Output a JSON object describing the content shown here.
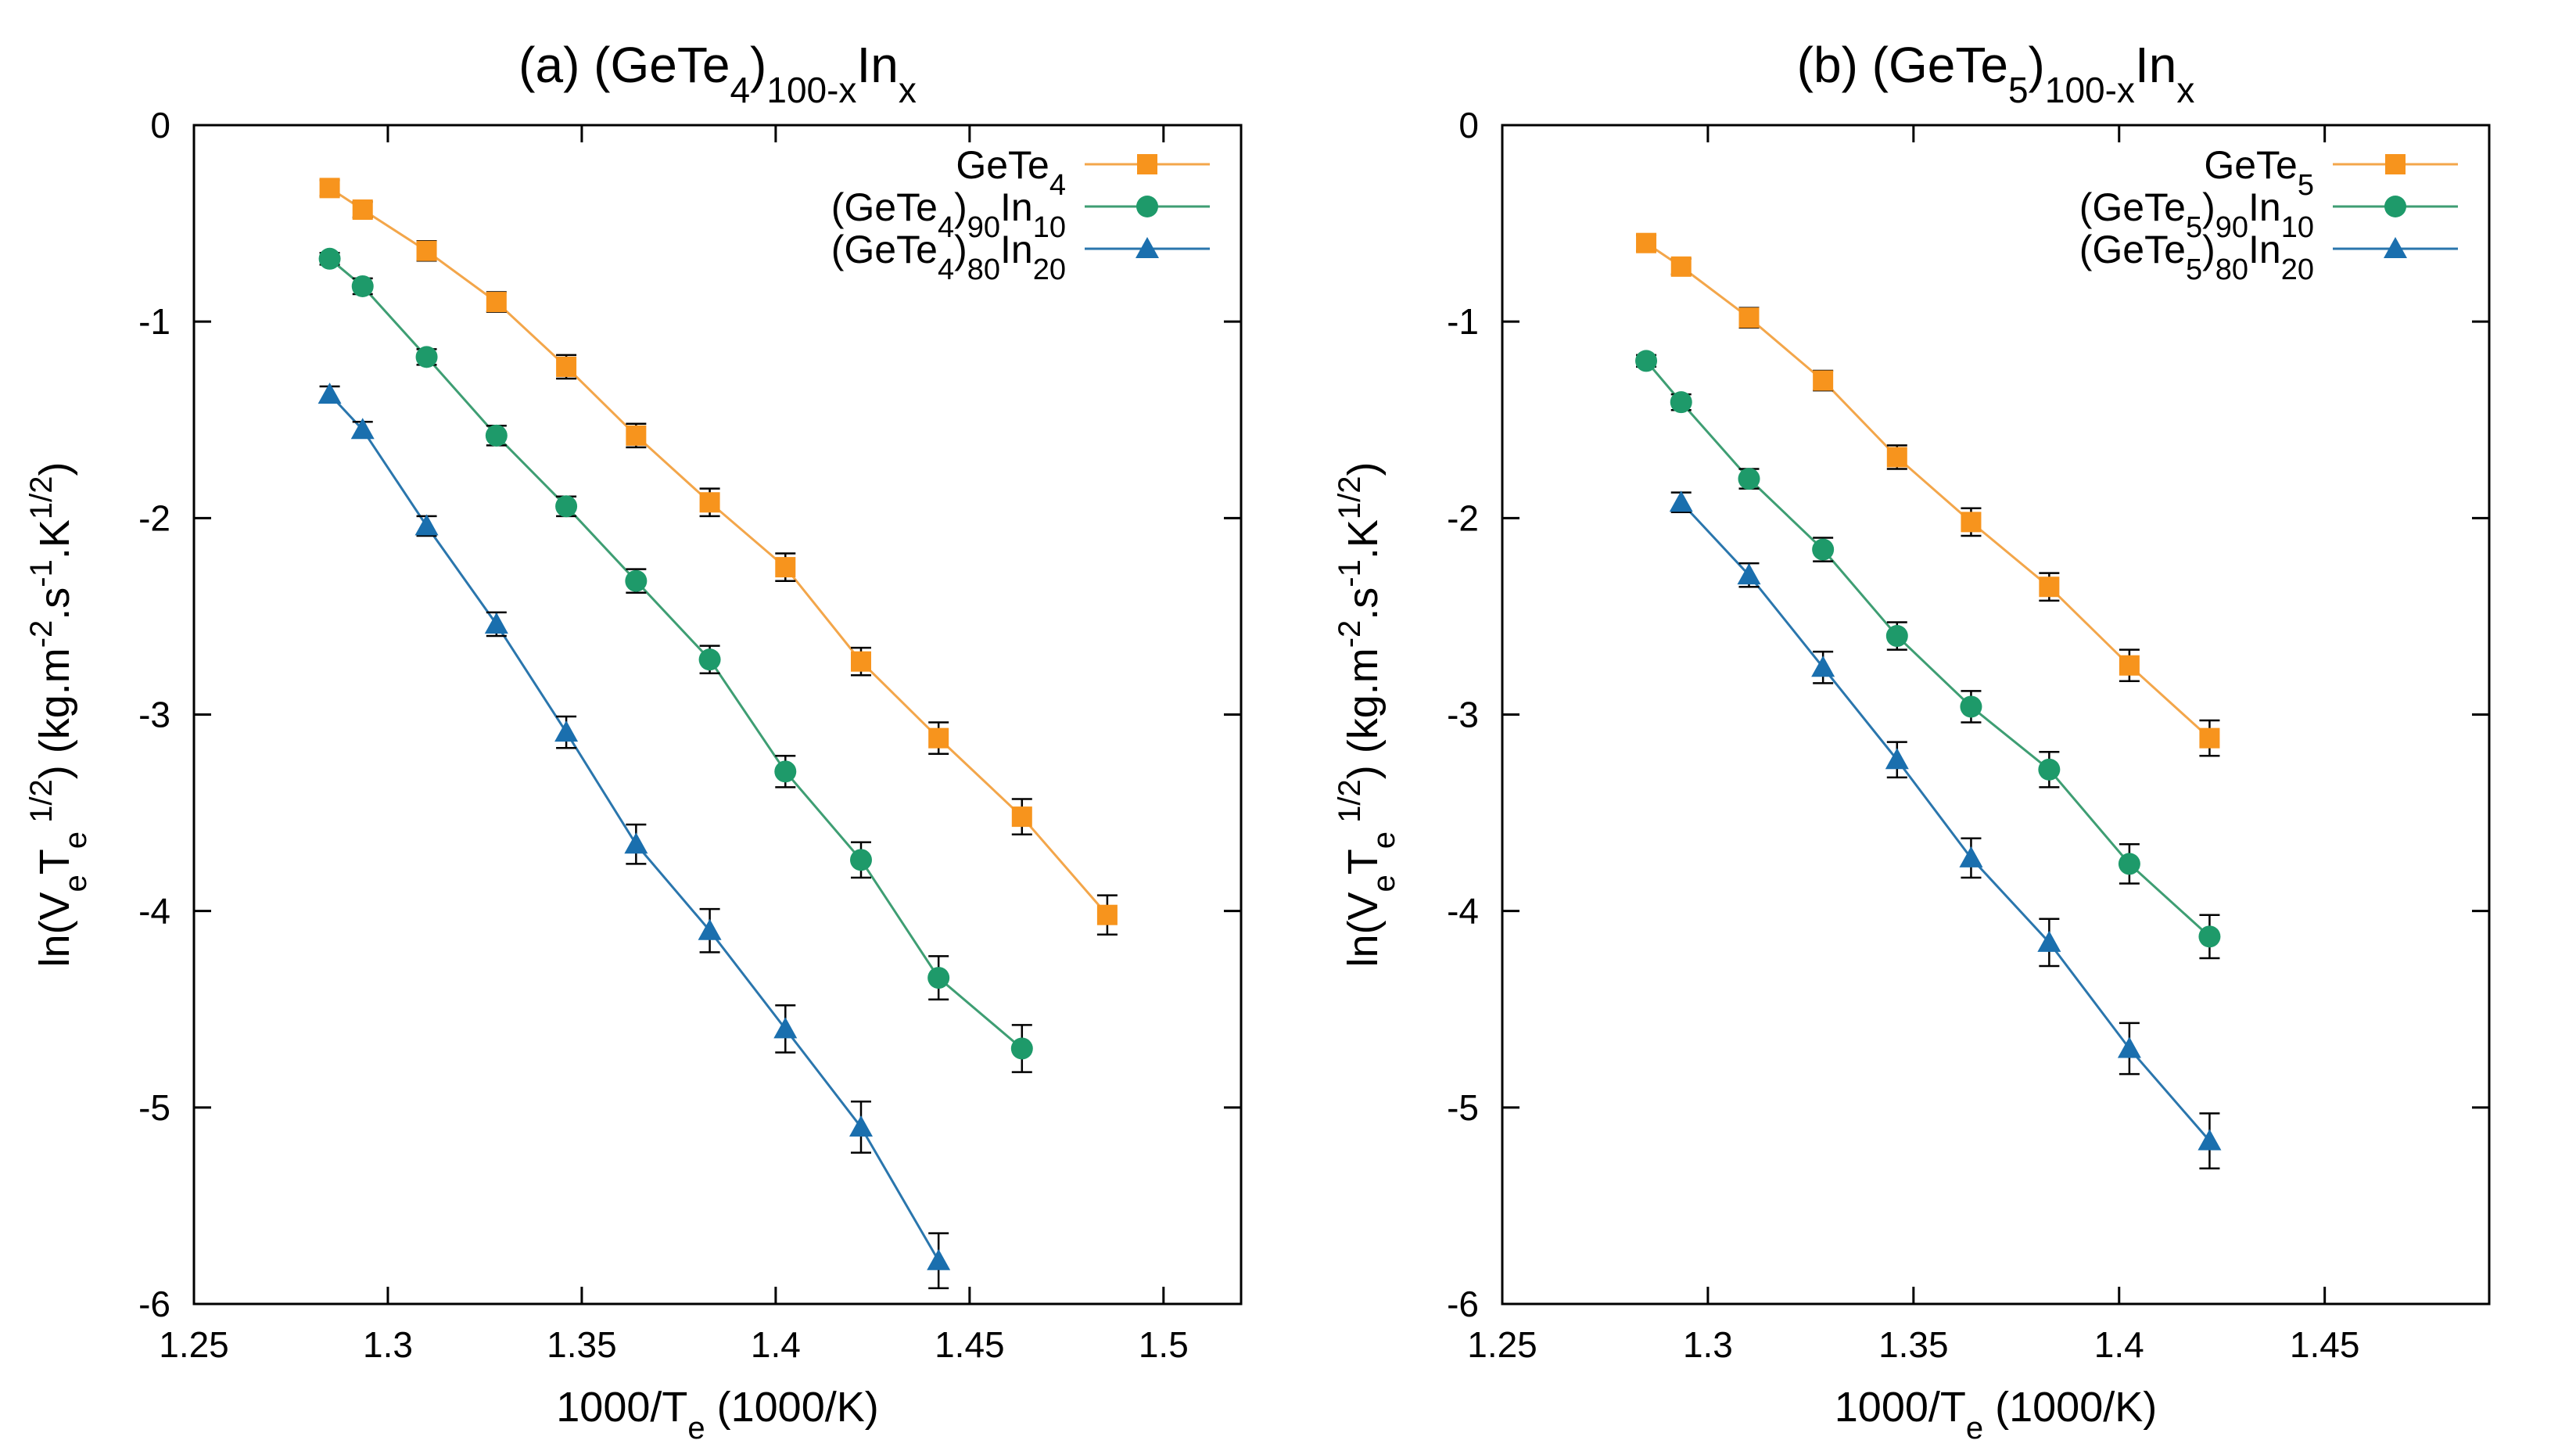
{
  "chart_data": [
    {
      "type": "line",
      "panel": "a",
      "title": "(a) (GeTe4)100-xInx",
      "title_parts": {
        "prefix": "(a) (GeTe",
        "sub1": "4",
        "mid": ")",
        "sub2": "100-x",
        "base": "In",
        "sub3": "x"
      },
      "xlabel": "1000/Te (1000/K)",
      "ylabel": "ln(VeTe1/2) (kg.m-2.s-1.K1/2)",
      "xlim": [
        1.25,
        1.52
      ],
      "ylim": [
        -6,
        0
      ],
      "xticks": [
        1.25,
        1.3,
        1.35,
        1.4,
        1.45,
        1.5
      ],
      "xtick_labels": [
        "1.25",
        "1.3",
        "1.35",
        "1.4",
        "1.45",
        "1.5"
      ],
      "yticks": [
        0,
        -1,
        -2,
        -3,
        -4,
        -5,
        -6
      ],
      "ytick_labels": [
        "0",
        "-1",
        "-2",
        "-3",
        "-4",
        "-5",
        "-6"
      ],
      "legend_position": "top-right",
      "series": [
        {
          "name": "GeTe4",
          "label": {
            "base": "GeTe",
            "sub": "4",
            "rest": "",
            "sub2": ""
          },
          "marker": "square",
          "color": "#f7941d",
          "line_color": "#f3a64a",
          "x": [
            1.285,
            1.2935,
            1.31,
            1.328,
            1.346,
            1.364,
            1.383,
            1.4025,
            1.422,
            1.442,
            1.4635,
            1.4855
          ],
          "y": [
            -0.32,
            -0.43,
            -0.64,
            -0.9,
            -1.23,
            -1.58,
            -1.92,
            -2.25,
            -2.73,
            -3.12,
            -3.52,
            -4.02
          ],
          "err": [
            0.04,
            0.04,
            0.05,
            0.05,
            0.06,
            0.06,
            0.07,
            0.07,
            0.07,
            0.08,
            0.09,
            0.1
          ]
        },
        {
          "name": "(GeTe4)90In10",
          "label": {
            "base": "(GeTe",
            "sub": "4",
            "rest": ")",
            "sub2": "90",
            "tail": "In",
            "sub3": "10"
          },
          "marker": "circle",
          "color": "#1e9a6a",
          "line_color": "#3e9e73",
          "x": [
            1.285,
            1.2935,
            1.31,
            1.328,
            1.346,
            1.364,
            1.383,
            1.4025,
            1.422,
            1.442,
            1.4635
          ],
          "y": [
            -0.68,
            -0.82,
            -1.18,
            -1.58,
            -1.94,
            -2.32,
            -2.72,
            -3.29,
            -3.74,
            -4.34,
            -4.7
          ],
          "err": [
            0.03,
            0.04,
            0.04,
            0.05,
            0.05,
            0.06,
            0.07,
            0.08,
            0.09,
            0.11,
            0.12
          ]
        },
        {
          "name": "(GeTe4)80In20",
          "label": {
            "base": "(GeTe",
            "sub": "4",
            "rest": ")",
            "sub2": "80",
            "tail": "In",
            "sub3": "20"
          },
          "marker": "triangle",
          "color": "#1a6fae",
          "line_color": "#2a76ad",
          "x": [
            1.285,
            1.2935,
            1.31,
            1.328,
            1.346,
            1.364,
            1.383,
            1.4025,
            1.422,
            1.442
          ],
          "y": [
            -1.37,
            -1.55,
            -2.04,
            -2.54,
            -3.09,
            -3.66,
            -4.1,
            -4.6,
            -5.1,
            -5.78
          ],
          "err": [
            0.04,
            0.04,
            0.05,
            0.06,
            0.08,
            0.1,
            0.11,
            0.12,
            0.13,
            0.14
          ]
        }
      ]
    },
    {
      "type": "line",
      "panel": "b",
      "title": "(b) (GeTe5)100-xInx",
      "title_parts": {
        "prefix": "(b) (GeTe",
        "sub1": "5",
        "mid": ")",
        "sub2": "100-x",
        "base": "In",
        "sub3": "x"
      },
      "xlabel": "1000/Te (1000/K)",
      "ylabel": "ln(VeTe1/2) (kg.m-2.s-1.K1/2)",
      "xlim": [
        1.25,
        1.49
      ],
      "ylim": [
        -6,
        0
      ],
      "xticks": [
        1.25,
        1.3,
        1.35,
        1.4,
        1.45
      ],
      "xtick_labels": [
        "1.25",
        "1.3",
        "1.35",
        "1.4",
        "1.45"
      ],
      "yticks": [
        0,
        -1,
        -2,
        -3,
        -4,
        -5,
        -6
      ],
      "ytick_labels": [
        "0",
        "-1",
        "-2",
        "-3",
        "-4",
        "-5",
        "-6"
      ],
      "legend_position": "top-right",
      "series": [
        {
          "name": "GeTe5",
          "label": {
            "base": "GeTe",
            "sub": "5",
            "rest": "",
            "sub2": ""
          },
          "marker": "square",
          "color": "#f7941d",
          "line_color": "#f3a64a",
          "x": [
            1.285,
            1.2935,
            1.31,
            1.328,
            1.346,
            1.364,
            1.383,
            1.4025,
            1.422
          ],
          "y": [
            -0.6,
            -0.72,
            -0.98,
            -1.3,
            -1.69,
            -2.02,
            -2.35,
            -2.75,
            -3.12
          ],
          "err": [
            0.04,
            0.04,
            0.05,
            0.05,
            0.06,
            0.07,
            0.07,
            0.08,
            0.09
          ]
        },
        {
          "name": "(GeTe5)90In10",
          "label": {
            "base": "(GeTe",
            "sub": "5",
            "rest": ")",
            "sub2": "90",
            "tail": "In",
            "sub3": "10"
          },
          "marker": "circle",
          "color": "#1e9a6a",
          "line_color": "#3e9e73",
          "x": [
            1.285,
            1.2935,
            1.31,
            1.328,
            1.346,
            1.364,
            1.383,
            1.4025,
            1.422
          ],
          "y": [
            -1.2,
            -1.41,
            -1.8,
            -2.16,
            -2.6,
            -2.96,
            -3.28,
            -3.76,
            -4.13
          ],
          "err": [
            0.03,
            0.04,
            0.05,
            0.06,
            0.07,
            0.08,
            0.09,
            0.1,
            0.11
          ]
        },
        {
          "name": "(GeTe5)80In20",
          "label": {
            "base": "(GeTe",
            "sub": "5",
            "rest": ")",
            "sub2": "80",
            "tail": "In",
            "sub3": "20"
          },
          "marker": "triangle",
          "color": "#1a6fae",
          "line_color": "#2a76ad",
          "x": [
            1.2935,
            1.31,
            1.328,
            1.346,
            1.364,
            1.383,
            1.4025,
            1.422
          ],
          "y": [
            -1.92,
            -2.29,
            -2.76,
            -3.23,
            -3.73,
            -4.16,
            -4.7,
            -5.17
          ],
          "err": [
            0.05,
            0.06,
            0.08,
            0.09,
            0.1,
            0.12,
            0.13,
            0.14
          ]
        }
      ]
    }
  ]
}
